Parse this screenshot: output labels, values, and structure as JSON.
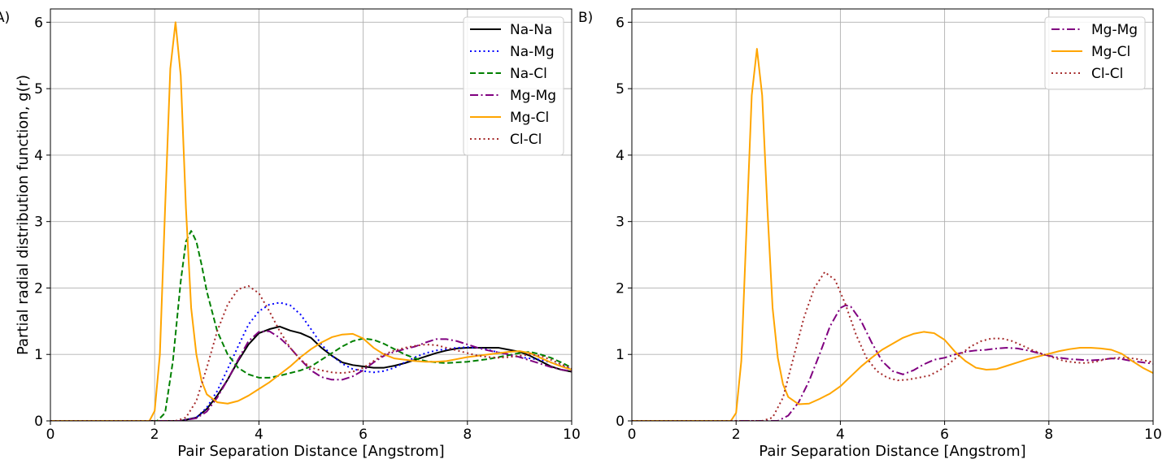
{
  "chart_data": [
    {
      "type": "line",
      "panel_label": "A)",
      "xlabel": "Pair Separation Distance [Angstrom]",
      "ylabel": "Partial radial distribution function, g(r)",
      "xlim": [
        0,
        10
      ],
      "ylim": [
        0,
        6.2
      ],
      "xticks": [
        0,
        2,
        4,
        6,
        8,
        10
      ],
      "yticks": [
        0,
        1,
        2,
        3,
        4,
        5,
        6
      ],
      "grid": true,
      "legend_position": "top-right",
      "series": [
        {
          "name": "Na-Na",
          "color": "#000000",
          "dash": "solid",
          "x": [
            0,
            2.5,
            2.8,
            3.0,
            3.2,
            3.4,
            3.6,
            3.8,
            4.0,
            4.2,
            4.4,
            4.6,
            4.8,
            5.0,
            5.2,
            5.4,
            5.6,
            5.8,
            6.0,
            6.2,
            6.4,
            6.6,
            6.8,
            7.0,
            7.2,
            7.4,
            7.6,
            7.8,
            8.0,
            8.2,
            8.4,
            8.6,
            8.8,
            9.0,
            9.2,
            9.4,
            9.6,
            9.8,
            10.0
          ],
          "y": [
            0,
            0,
            0.05,
            0.18,
            0.38,
            0.62,
            0.9,
            1.15,
            1.32,
            1.38,
            1.42,
            1.36,
            1.32,
            1.25,
            1.1,
            0.98,
            0.88,
            0.84,
            0.82,
            0.8,
            0.8,
            0.83,
            0.87,
            0.92,
            0.97,
            1.02,
            1.06,
            1.09,
            1.1,
            1.1,
            1.1,
            1.1,
            1.07,
            1.04,
            0.98,
            0.9,
            0.82,
            0.77,
            0.74
          ]
        },
        {
          "name": "Na-Mg",
          "color": "#0000ff",
          "dash": "dotted",
          "x": [
            0,
            2.5,
            2.8,
            3.0,
            3.2,
            3.4,
            3.6,
            3.8,
            4.0,
            4.2,
            4.4,
            4.6,
            4.8,
            5.0,
            5.2,
            5.4,
            5.6,
            5.8,
            6.0,
            6.2,
            6.4,
            6.6,
            6.8,
            7.0,
            7.2,
            7.4,
            7.6,
            7.8,
            8.0,
            8.2,
            8.4,
            8.6,
            8.8,
            9.0,
            9.2,
            9.4,
            9.6,
            9.8,
            10.0
          ],
          "y": [
            0,
            0,
            0.05,
            0.2,
            0.45,
            0.78,
            1.12,
            1.45,
            1.65,
            1.75,
            1.78,
            1.74,
            1.6,
            1.38,
            1.15,
            0.98,
            0.86,
            0.78,
            0.75,
            0.73,
            0.75,
            0.8,
            0.88,
            0.96,
            1.02,
            1.06,
            1.08,
            1.1,
            1.11,
            1.1,
            1.07,
            1.03,
            0.99,
            0.96,
            0.94,
            0.92,
            0.88,
            0.83,
            0.78
          ]
        },
        {
          "name": "Na-Cl",
          "color": "#008000",
          "dash": "dashed",
          "x": [
            0,
            2.05,
            2.2,
            2.35,
            2.5,
            2.6,
            2.7,
            2.8,
            2.9,
            3.0,
            3.2,
            3.4,
            3.6,
            3.8,
            4.0,
            4.2,
            4.4,
            4.6,
            4.8,
            5.0,
            5.2,
            5.4,
            5.6,
            5.8,
            6.0,
            6.2,
            6.4,
            6.6,
            6.8,
            7.0,
            7.2,
            7.4,
            7.6,
            7.8,
            8.0,
            8.2,
            8.4,
            8.6,
            8.8,
            9.0,
            9.2,
            9.4,
            9.6,
            9.8,
            10.0
          ],
          "y": [
            0,
            0,
            0.12,
            0.9,
            2.1,
            2.7,
            2.86,
            2.7,
            2.35,
            1.95,
            1.35,
            1.0,
            0.8,
            0.7,
            0.65,
            0.65,
            0.68,
            0.72,
            0.76,
            0.82,
            0.92,
            1.02,
            1.12,
            1.2,
            1.24,
            1.22,
            1.16,
            1.08,
            1.0,
            0.94,
            0.9,
            0.88,
            0.87,
            0.88,
            0.89,
            0.91,
            0.93,
            0.96,
            0.99,
            1.02,
            1.04,
            1.0,
            0.95,
            0.88,
            0.8
          ]
        },
        {
          "name": "Mg-Mg",
          "color": "#800080",
          "dash": "dashdot",
          "x": [
            0,
            2.5,
            2.8,
            3.0,
            3.2,
            3.4,
            3.6,
            3.8,
            4.0,
            4.2,
            4.4,
            4.6,
            4.8,
            5.0,
            5.2,
            5.4,
            5.6,
            5.8,
            6.0,
            6.2,
            6.4,
            6.6,
            6.8,
            7.0,
            7.2,
            7.4,
            7.6,
            7.8,
            8.0,
            8.2,
            8.4,
            8.6,
            8.8,
            9.0,
            9.2,
            9.4,
            9.6,
            9.8,
            10.0
          ],
          "y": [
            0,
            0,
            0.04,
            0.14,
            0.35,
            0.62,
            0.92,
            1.2,
            1.34,
            1.35,
            1.25,
            1.1,
            0.92,
            0.76,
            0.66,
            0.62,
            0.62,
            0.67,
            0.76,
            0.88,
            0.98,
            1.04,
            1.08,
            1.12,
            1.18,
            1.23,
            1.23,
            1.2,
            1.15,
            1.1,
            1.06,
            1.03,
            1.0,
            0.96,
            0.91,
            0.86,
            0.81,
            0.77,
            0.75
          ]
        },
        {
          "name": "Mg-Cl",
          "color": "#ffa500",
          "dash": "solid",
          "x": [
            0,
            1.9,
            2.0,
            2.1,
            2.2,
            2.3,
            2.4,
            2.5,
            2.6,
            2.7,
            2.8,
            2.9,
            3.0,
            3.2,
            3.4,
            3.6,
            3.8,
            4.0,
            4.2,
            4.4,
            4.6,
            4.8,
            5.0,
            5.2,
            5.4,
            5.6,
            5.8,
            6.0,
            6.2,
            6.4,
            6.6,
            6.8,
            7.0,
            7.2,
            7.4,
            7.6,
            7.8,
            8.0,
            8.2,
            8.4,
            8.6,
            8.8,
            9.0,
            9.2,
            9.4,
            9.6,
            9.8,
            10.0
          ],
          "y": [
            0,
            0,
            0.15,
            1.0,
            3.2,
            5.3,
            6.0,
            5.2,
            3.2,
            1.7,
            1.0,
            0.6,
            0.4,
            0.28,
            0.26,
            0.3,
            0.38,
            0.48,
            0.58,
            0.7,
            0.82,
            0.96,
            1.08,
            1.18,
            1.26,
            1.3,
            1.31,
            1.24,
            1.1,
            1.0,
            0.94,
            0.92,
            0.9,
            0.89,
            0.89,
            0.9,
            0.93,
            0.96,
            0.98,
            1.0,
            1.02,
            1.04,
            1.05,
            1.02,
            0.95,
            0.88,
            0.82,
            0.77
          ]
        },
        {
          "name": "Cl-Cl",
          "color": "#a52a2a",
          "dash": "dotted",
          "x": [
            0,
            2.4,
            2.6,
            2.8,
            3.0,
            3.2,
            3.4,
            3.6,
            3.8,
            4.0,
            4.2,
            4.4,
            4.6,
            4.8,
            5.0,
            5.2,
            5.4,
            5.6,
            5.8,
            6.0,
            6.2,
            6.4,
            6.6,
            6.8,
            7.0,
            7.2,
            7.4,
            7.6,
            7.8,
            8.0,
            8.2,
            8.4,
            8.6,
            8.8,
            9.0,
            9.2,
            9.4,
            9.6,
            9.8,
            10.0
          ],
          "y": [
            0,
            0,
            0.05,
            0.3,
            0.8,
            1.35,
            1.75,
            1.98,
            2.03,
            1.92,
            1.65,
            1.35,
            1.1,
            0.92,
            0.8,
            0.76,
            0.73,
            0.72,
            0.74,
            0.8,
            0.9,
            1.0,
            1.06,
            1.1,
            1.13,
            1.15,
            1.14,
            1.1,
            1.06,
            1.02,
            0.98,
            0.96,
            0.95,
            0.96,
            0.98,
            1.0,
            0.98,
            0.92,
            0.85,
            0.79
          ]
        }
      ]
    },
    {
      "type": "line",
      "panel_label": "B)",
      "xlabel": "Pair Separation Distance [Angstrom]",
      "ylabel": "",
      "xlim": [
        0,
        10
      ],
      "ylim": [
        0,
        6.2
      ],
      "xticks": [
        0,
        2,
        4,
        6,
        8,
        10
      ],
      "yticks": [
        0,
        1,
        2,
        3,
        4,
        5,
        6
      ],
      "grid": true,
      "legend_position": "top-right",
      "series": [
        {
          "name": "Mg-Mg",
          "color": "#800080",
          "dash": "dashdot",
          "x": [
            0,
            2.8,
            3.0,
            3.2,
            3.4,
            3.6,
            3.8,
            4.0,
            4.1,
            4.2,
            4.4,
            4.6,
            4.8,
            5.0,
            5.2,
            5.4,
            5.6,
            5.8,
            6.0,
            6.2,
            6.4,
            6.6,
            6.8,
            7.0,
            7.2,
            7.4,
            7.6,
            7.8,
            8.0,
            8.2,
            8.4,
            8.6,
            8.8,
            9.0,
            9.2,
            9.4,
            9.6,
            9.8,
            10.0
          ],
          "y": [
            0,
            0,
            0.08,
            0.28,
            0.6,
            1.0,
            1.42,
            1.7,
            1.74,
            1.72,
            1.5,
            1.18,
            0.9,
            0.75,
            0.7,
            0.76,
            0.85,
            0.92,
            0.95,
            1.0,
            1.04,
            1.06,
            1.07,
            1.09,
            1.1,
            1.09,
            1.06,
            1.02,
            0.98,
            0.95,
            0.93,
            0.92,
            0.91,
            0.92,
            0.94,
            0.93,
            0.9,
            0.88,
            0.86
          ]
        },
        {
          "name": "Mg-Cl",
          "color": "#ffa500",
          "dash": "solid",
          "x": [
            0,
            1.9,
            2.0,
            2.1,
            2.2,
            2.3,
            2.4,
            2.5,
            2.6,
            2.7,
            2.8,
            2.9,
            3.0,
            3.2,
            3.4,
            3.6,
            3.8,
            4.0,
            4.2,
            4.4,
            4.6,
            4.8,
            5.0,
            5.2,
            5.4,
            5.6,
            5.8,
            6.0,
            6.2,
            6.4,
            6.6,
            6.8,
            7.0,
            7.2,
            7.4,
            7.6,
            7.8,
            8.0,
            8.2,
            8.4,
            8.6,
            8.8,
            9.0,
            9.2,
            9.4,
            9.6,
            9.8,
            10.0
          ],
          "y": [
            0,
            0,
            0.12,
            0.9,
            2.9,
            4.9,
            5.6,
            4.9,
            3.2,
            1.7,
            0.95,
            0.55,
            0.36,
            0.25,
            0.26,
            0.33,
            0.41,
            0.52,
            0.67,
            0.82,
            0.95,
            1.07,
            1.16,
            1.25,
            1.31,
            1.34,
            1.32,
            1.22,
            1.04,
            0.9,
            0.8,
            0.77,
            0.78,
            0.83,
            0.88,
            0.93,
            0.97,
            1.01,
            1.05,
            1.08,
            1.1,
            1.1,
            1.09,
            1.07,
            1.01,
            0.9,
            0.8,
            0.72
          ]
        },
        {
          "name": "Cl-Cl",
          "color": "#a52a2a",
          "dash": "dotted",
          "x": [
            0,
            2.5,
            2.7,
            2.9,
            3.1,
            3.3,
            3.5,
            3.7,
            3.9,
            4.1,
            4.3,
            4.5,
            4.7,
            4.9,
            5.1,
            5.3,
            5.5,
            5.7,
            5.9,
            6.1,
            6.3,
            6.5,
            6.7,
            6.9,
            7.1,
            7.3,
            7.5,
            7.7,
            7.9,
            8.1,
            8.3,
            8.5,
            8.7,
            8.9,
            9.1,
            9.3,
            9.5,
            9.7,
            9.9,
            10.0
          ],
          "y": [
            0,
            0,
            0.05,
            0.35,
            0.95,
            1.55,
            2.0,
            2.24,
            2.12,
            1.75,
            1.3,
            0.95,
            0.75,
            0.65,
            0.61,
            0.62,
            0.65,
            0.68,
            0.76,
            0.87,
            1.0,
            1.12,
            1.2,
            1.24,
            1.24,
            1.2,
            1.13,
            1.06,
            1.0,
            0.95,
            0.9,
            0.88,
            0.87,
            0.89,
            0.93,
            0.95,
            0.95,
            0.93,
            0.9,
            0.88
          ]
        }
      ]
    }
  ]
}
